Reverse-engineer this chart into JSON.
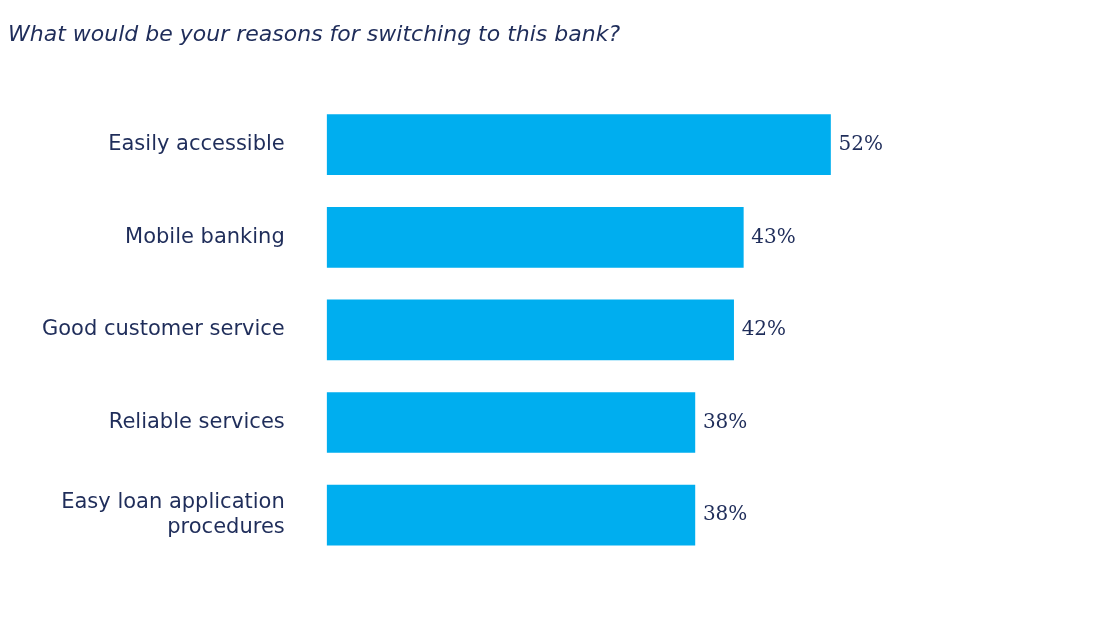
{
  "chart_data": {
    "type": "bar",
    "orientation": "horizontal",
    "title": "What would be your reasons for switching to this bank?",
    "categories": [
      "Easily accessible",
      "Mobile banking",
      "Good customer service",
      "Reliable services",
      "Easy loan application\nprocedures"
    ],
    "values": [
      52,
      43,
      42,
      38,
      38
    ],
    "value_labels": [
      "52%",
      "43%",
      "42%",
      "38%",
      "38%"
    ],
    "color": "#00aeef",
    "tick_labels": "y",
    "grid": false,
    "legend": false
  }
}
